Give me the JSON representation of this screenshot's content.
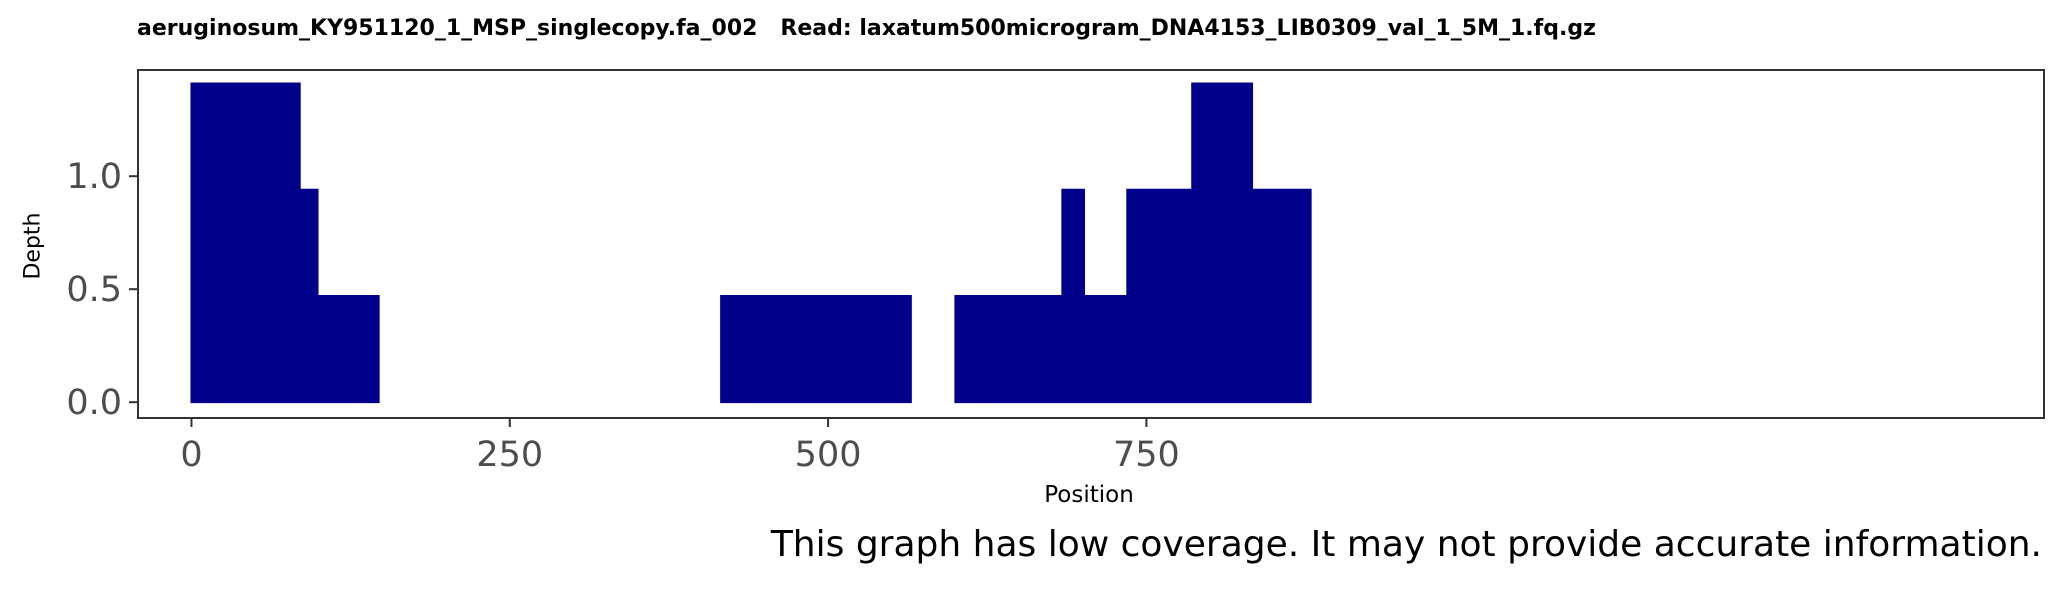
{
  "chart_data": {
    "type": "area",
    "title": "aeruginosum_KY951120_1_MSP_singlecopy.fa_002   Read: laxatum500microgram_DNA4153_LIB0309_val_1_5M_1.fq.gz",
    "xlabel": "Position",
    "ylabel": "Depth",
    "xlim": [
      -42,
      1455
    ],
    "ylim": [
      -0.07,
      1.47
    ],
    "xticks": [
      0,
      250,
      500,
      750
    ],
    "yticks": [
      0.0,
      0.5,
      1.0
    ],
    "ytick_labels": [
      "0.0",
      "0.5",
      "1.0"
    ],
    "grid": false,
    "series": [
      {
        "color": "#00008B",
        "segments": [
          {
            "start": 0,
            "end": 147,
            "steps": [
              {
                "from": 0,
                "to": 85,
                "depth": 1.41
              },
              {
                "from": 85,
                "to": 99,
                "depth": 0.94
              },
              {
                "from": 99,
                "to": 147,
                "depth": 0.47
              }
            ]
          },
          {
            "start": 416,
            "end": 565,
            "steps": [
              {
                "from": 416,
                "to": 565,
                "depth": 0.47
              }
            ]
          },
          {
            "start": 600,
            "end": 879,
            "steps": [
              {
                "from": 600,
                "to": 684,
                "depth": 0.47
              },
              {
                "from": 684,
                "to": 701,
                "depth": 0.94
              },
              {
                "from": 701,
                "to": 735,
                "depth": 0.47
              },
              {
                "from": 735,
                "to": 786,
                "depth": 0.94
              },
              {
                "from": 786,
                "to": 833,
                "depth": 1.41
              },
              {
                "from": 833,
                "to": 879,
                "depth": 0.94
              }
            ]
          }
        ]
      }
    ]
  },
  "warning": "This graph has low coverage. It may not provide accurate information.",
  "colors": {
    "fill": "#00008B",
    "axis_text": "#4D4D4D",
    "frame": "#333333"
  }
}
